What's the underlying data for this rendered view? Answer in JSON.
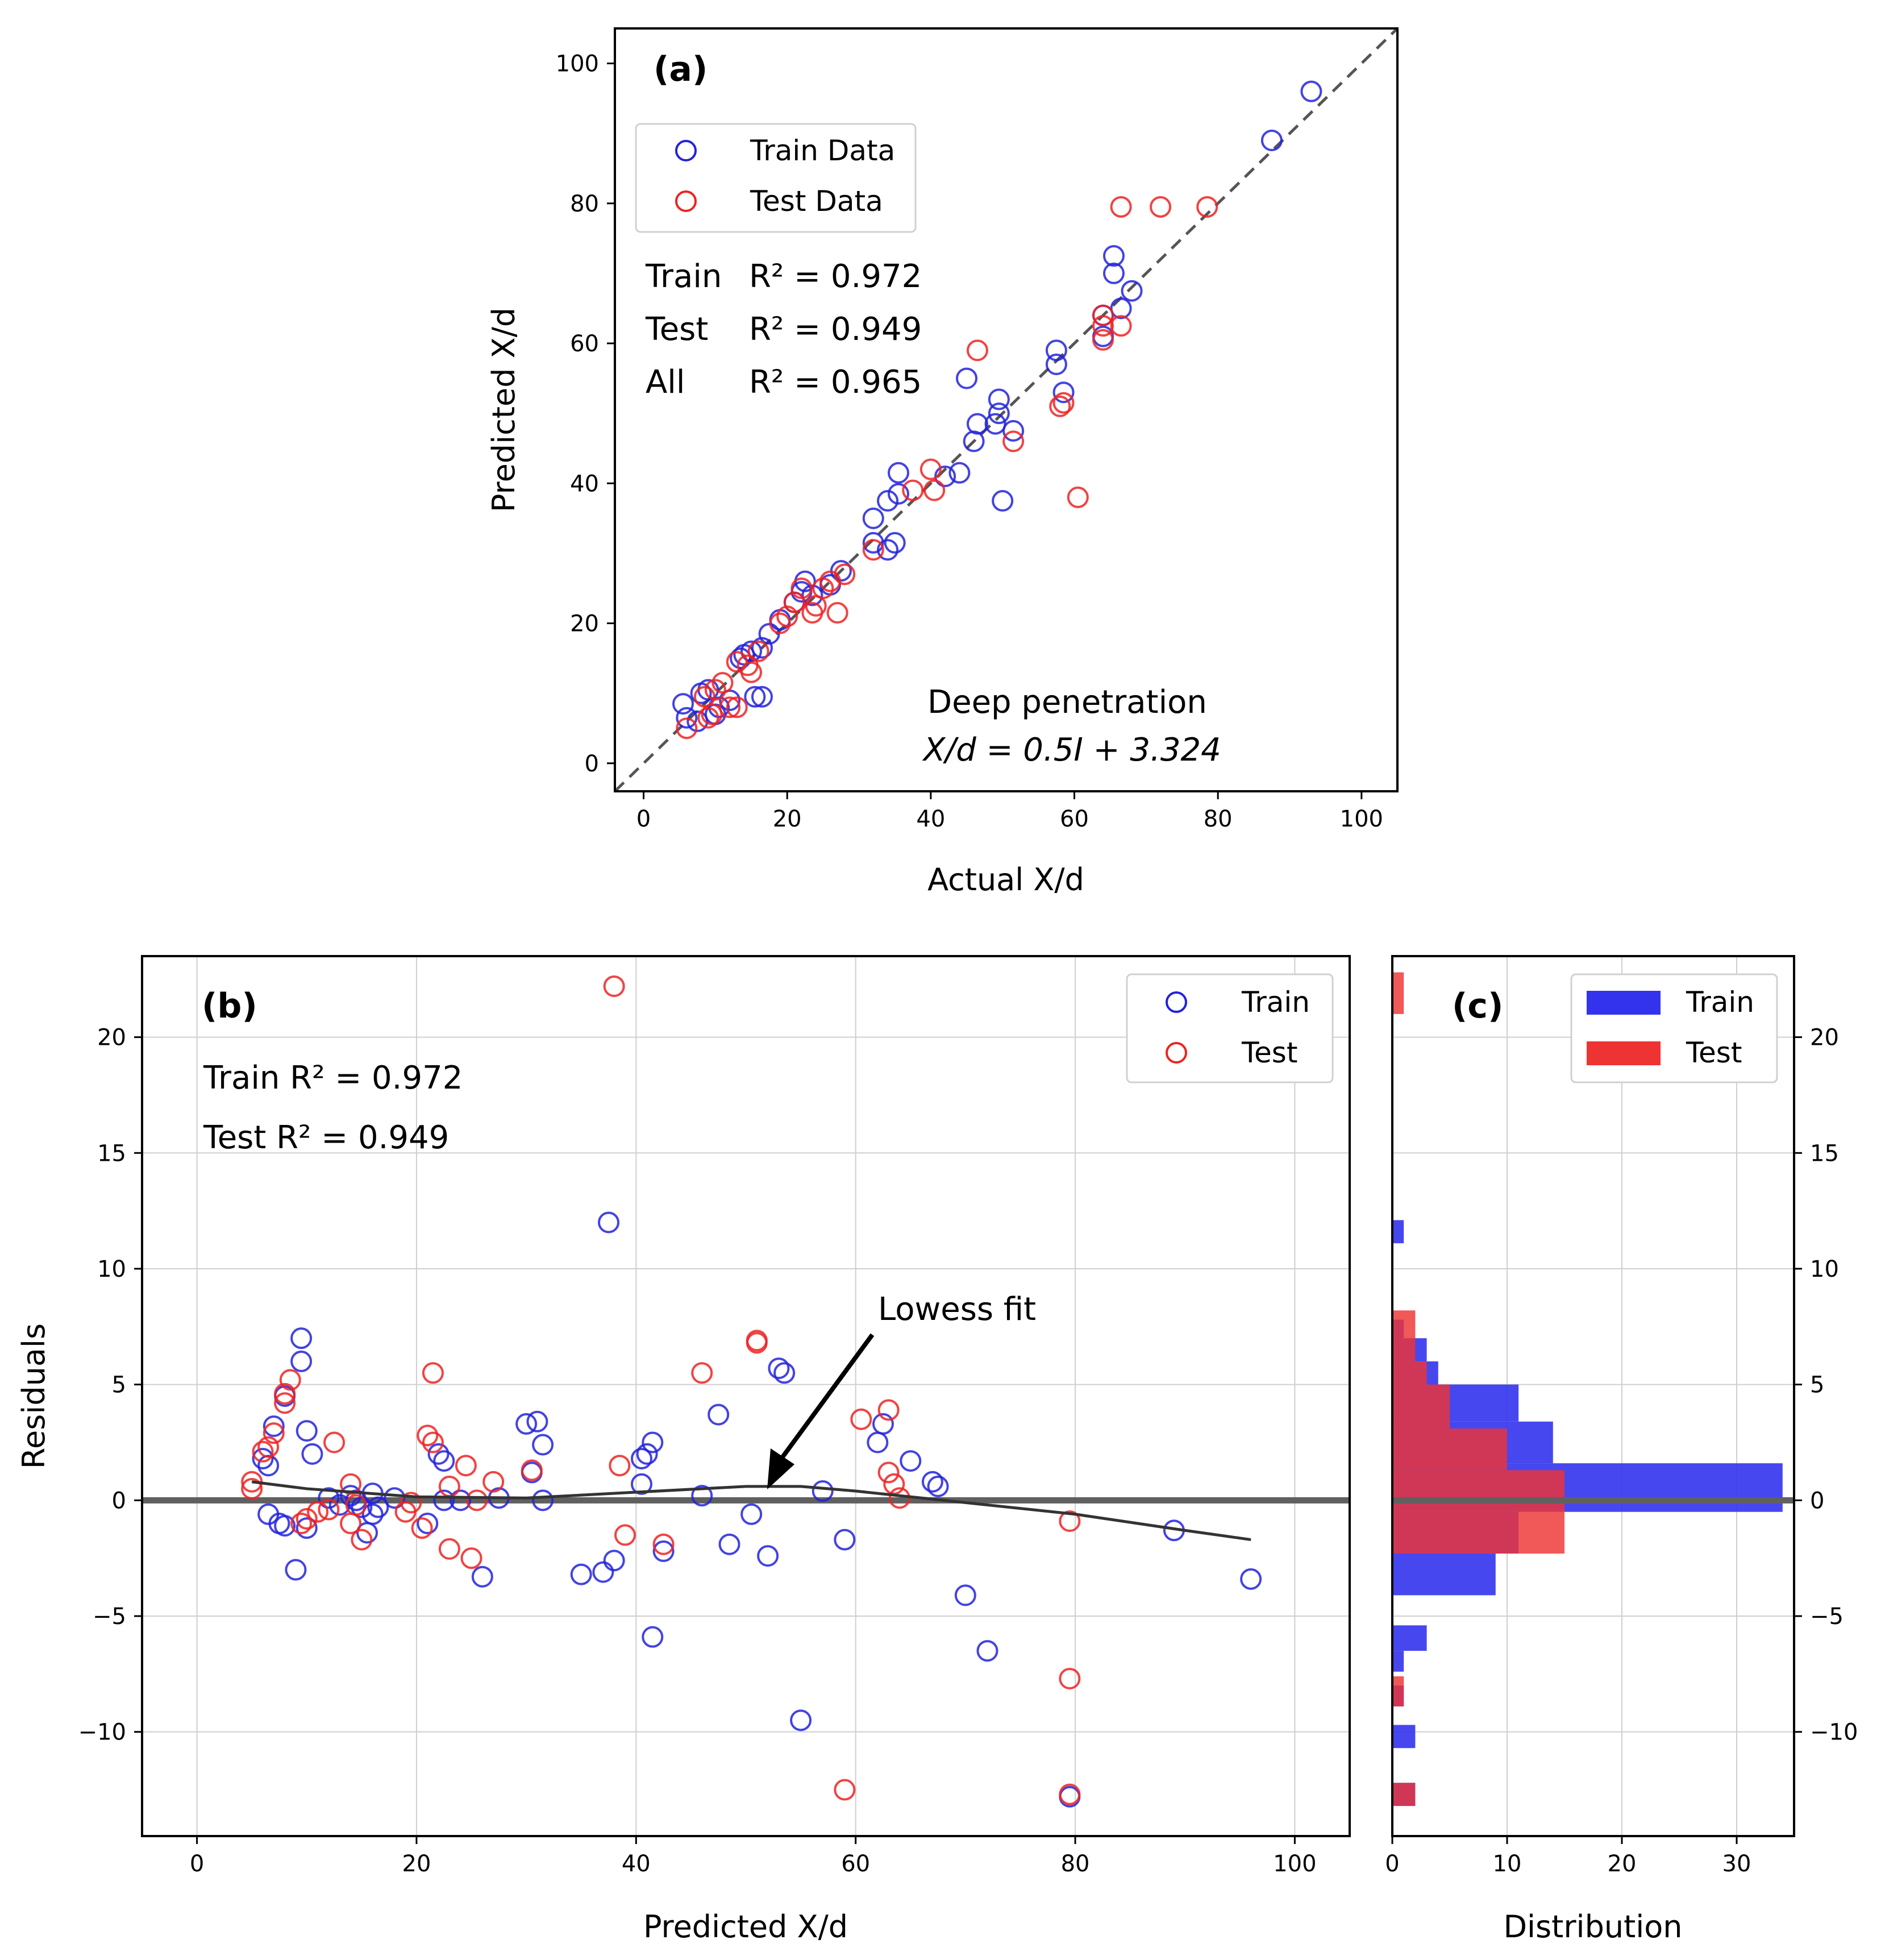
{
  "chart_data": [
    {
      "id": "a",
      "type": "scatter",
      "panel_label": "(a)",
      "xlabel": "Actual X/d",
      "ylabel": "Predicted X/d",
      "xlim": [
        -4,
        105
      ],
      "ylim": [
        -4,
        105
      ],
      "xticks": [
        0,
        20,
        40,
        60,
        80,
        100
      ],
      "yticks": [
        0,
        20,
        40,
        60,
        80,
        100
      ],
      "grid": false,
      "legend_position": "upper-left",
      "identity_line": true,
      "series": [
        {
          "name": "Train Data",
          "color": "#2222dd",
          "points": [
            [
              5.5,
              8.5
            ],
            [
              6,
              6.5
            ],
            [
              7.5,
              6
            ],
            [
              8,
              10
            ],
            [
              9,
              10.5
            ],
            [
              10,
              7
            ],
            [
              10.5,
              8
            ],
            [
              12,
              9
            ],
            [
              13.5,
              15
            ],
            [
              14,
              15.5
            ],
            [
              15,
              16
            ],
            [
              15.5,
              9.5
            ],
            [
              16.5,
              9.5
            ],
            [
              16.5,
              16.5
            ],
            [
              17.5,
              18.5
            ],
            [
              19,
              20.5
            ],
            [
              21,
              23
            ],
            [
              22,
              24.5
            ],
            [
              22.5,
              26
            ],
            [
              23.5,
              24
            ],
            [
              26,
              25.5
            ],
            [
              27.5,
              27.5
            ],
            [
              32,
              35
            ],
            [
              32,
              31.5
            ],
            [
              34,
              30.5
            ],
            [
              34,
              37.5
            ],
            [
              35,
              31.5
            ],
            [
              35.5,
              41.5
            ],
            [
              35.5,
              38.5
            ],
            [
              42,
              41
            ],
            [
              44,
              41.5
            ],
            [
              45,
              55
            ],
            [
              46,
              46
            ],
            [
              46.5,
              48.5
            ],
            [
              49,
              48.5
            ],
            [
              49.5,
              50
            ],
            [
              49.5,
              52
            ],
            [
              50,
              37.5
            ],
            [
              51.5,
              47.5
            ],
            [
              57.5,
              59
            ],
            [
              57.5,
              57
            ],
            [
              58.5,
              53
            ],
            [
              64,
              64
            ],
            [
              64,
              61
            ],
            [
              65.5,
              72.5
            ],
            [
              65.5,
              70
            ],
            [
              66.5,
              65
            ],
            [
              68,
              67.5
            ],
            [
              87.5,
              89
            ],
            [
              93,
              96
            ]
          ]
        },
        {
          "name": "Test Data",
          "color": "#ee2222",
          "points": [
            [
              6,
              5
            ],
            [
              8.5,
              9.5
            ],
            [
              9,
              6.5
            ],
            [
              9.5,
              7
            ],
            [
              10,
              10.5
            ],
            [
              11,
              11.5
            ],
            [
              12,
              8
            ],
            [
              13,
              14.5
            ],
            [
              13,
              8
            ],
            [
              14.5,
              14
            ],
            [
              15,
              13
            ],
            [
              16,
              16
            ],
            [
              19,
              20
            ],
            [
              20,
              21
            ],
            [
              21,
              23
            ],
            [
              22,
              25
            ],
            [
              23.5,
              21.5
            ],
            [
              24,
              22.5
            ],
            [
              25,
              25
            ],
            [
              26,
              26
            ],
            [
              27,
              21.5
            ],
            [
              28,
              27
            ],
            [
              32,
              30.5
            ],
            [
              37.5,
              39
            ],
            [
              40,
              42
            ],
            [
              40.5,
              39
            ],
            [
              46.5,
              59
            ],
            [
              51.5,
              46
            ],
            [
              58,
              51
            ],
            [
              58.5,
              51.5
            ],
            [
              60.5,
              38
            ],
            [
              64,
              64
            ],
            [
              64,
              62.5
            ],
            [
              64,
              60.5
            ],
            [
              66.5,
              79.5
            ],
            [
              66.5,
              62.5
            ],
            [
              72,
              79.5
            ],
            [
              78.5,
              79.5
            ]
          ]
        }
      ],
      "annotations": {
        "train_r2": {
          "label": "Train",
          "value": "R² = 0.972"
        },
        "test_r2": {
          "label": "Test",
          "value": "R² = 0.949"
        },
        "all_r2": {
          "label": "All",
          "value": "R² = 0.965"
        },
        "regime": "Deep penetration",
        "equation": "X/d = 0.5I + 3.324"
      }
    },
    {
      "id": "b",
      "type": "scatter",
      "panel_label": "(b)",
      "xlabel": "Predicted X/d",
      "ylabel": "Residuals",
      "xlim": [
        -5,
        105
      ],
      "ylim": [
        -14.5,
        23.5
      ],
      "xticks": [
        0,
        20,
        40,
        60,
        80,
        100
      ],
      "yticks": [
        -10,
        -5,
        0,
        5,
        10,
        15,
        20
      ],
      "grid": true,
      "legend_position": "upper-right",
      "zero_line": true,
      "series": [
        {
          "name": "Train",
          "color": "#2222dd",
          "points": [
            [
              6,
              1.8
            ],
            [
              6.5,
              1.5
            ],
            [
              6.5,
              -0.6
            ],
            [
              7,
              3.2
            ],
            [
              7.5,
              -1
            ],
            [
              8,
              -1.1
            ],
            [
              8,
              4.5
            ],
            [
              9,
              -3
            ],
            [
              9.5,
              7
            ],
            [
              9.5,
              6
            ],
            [
              10,
              -1.2
            ],
            [
              10,
              3
            ],
            [
              10.5,
              2
            ],
            [
              12,
              0.1
            ],
            [
              13,
              -0.2
            ],
            [
              14,
              0.2
            ],
            [
              14.5,
              0
            ],
            [
              15,
              -0.3
            ],
            [
              15.5,
              -1.4
            ],
            [
              16,
              0.3
            ],
            [
              16,
              -0.6
            ],
            [
              16.5,
              -0.3
            ],
            [
              18,
              0.1
            ],
            [
              21,
              -1
            ],
            [
              22,
              2
            ],
            [
              22.5,
              1.7
            ],
            [
              22.5,
              0
            ],
            [
              24,
              0
            ],
            [
              26,
              -3.3
            ],
            [
              27.5,
              0.1
            ],
            [
              30,
              3.3
            ],
            [
              30.5,
              1.2
            ],
            [
              31,
              3.4
            ],
            [
              31.5,
              2.4
            ],
            [
              31.5,
              0
            ],
            [
              35,
              -3.2
            ],
            [
              37,
              -3.1
            ],
            [
              37.5,
              12
            ],
            [
              38,
              -2.6
            ],
            [
              40.5,
              1.8
            ],
            [
              40.5,
              0.7
            ],
            [
              41,
              2
            ],
            [
              41.5,
              -5.9
            ],
            [
              41.5,
              2.5
            ],
            [
              42.5,
              -2.2
            ],
            [
              46,
              0.2
            ],
            [
              47.5,
              3.7
            ],
            [
              48.5,
              -1.9
            ],
            [
              50.5,
              -0.6
            ],
            [
              52,
              -2.4
            ],
            [
              53,
              5.7
            ],
            [
              53.5,
              5.5
            ],
            [
              55,
              -9.5
            ],
            [
              57,
              0.4
            ],
            [
              59,
              -1.7
            ],
            [
              62,
              2.5
            ],
            [
              62.5,
              3.3
            ],
            [
              65,
              1.7
            ],
            [
              67,
              0.8
            ],
            [
              67.5,
              0.6
            ],
            [
              70,
              -4.1
            ],
            [
              72,
              -6.5
            ],
            [
              79.5,
              -12.8
            ],
            [
              89,
              -1.3
            ],
            [
              96,
              -3.4
            ]
          ]
        },
        {
          "name": "Test",
          "color": "#ee2222",
          "points": [
            [
              5,
              0.8
            ],
            [
              5,
              0.5
            ],
            [
              6,
              2.1
            ],
            [
              6.5,
              2.3
            ],
            [
              7,
              2.9
            ],
            [
              8,
              4.2
            ],
            [
              8,
              4.6
            ],
            [
              8.5,
              5.2
            ],
            [
              9.5,
              -1
            ],
            [
              10,
              -0.8
            ],
            [
              11,
              -0.5
            ],
            [
              12,
              -0.4
            ],
            [
              12.5,
              2.5
            ],
            [
              14,
              0.7
            ],
            [
              14,
              -1
            ],
            [
              14.5,
              -0.2
            ],
            [
              15,
              -1.7
            ],
            [
              19,
              -0.5
            ],
            [
              19.5,
              -0.1
            ],
            [
              20.5,
              -1.2
            ],
            [
              21,
              2.8
            ],
            [
              21.5,
              2.5
            ],
            [
              21.5,
              5.5
            ],
            [
              23,
              -2.1
            ],
            [
              23,
              0.6
            ],
            [
              24.5,
              1.5
            ],
            [
              25,
              -2.5
            ],
            [
              25.5,
              0
            ],
            [
              27,
              0.8
            ],
            [
              30.5,
              1.3
            ],
            [
              38,
              22.2
            ],
            [
              38.5,
              1.5
            ],
            [
              39,
              -1.5
            ],
            [
              42.5,
              -1.9
            ],
            [
              46,
              5.5
            ],
            [
              51,
              6.9
            ],
            [
              51,
              6.8
            ],
            [
              59,
              -12.5
            ],
            [
              60.5,
              3.5
            ],
            [
              63,
              3.9
            ],
            [
              63,
              1.2
            ],
            [
              63.5,
              0.7
            ],
            [
              64,
              0.1
            ],
            [
              79.5,
              -12.7
            ],
            [
              79.5,
              -0.9
            ],
            [
              79.5,
              -7.7
            ]
          ]
        }
      ],
      "lowess": {
        "name": "Lowess fit",
        "x": [
          5,
          10,
          20,
          30,
          40,
          50,
          55,
          60,
          70,
          80,
          90,
          96
        ],
        "y": [
          0.8,
          0.5,
          0.15,
          0.1,
          0.35,
          0.6,
          0.6,
          0.4,
          -0.1,
          -0.6,
          -1.3,
          -1.7
        ]
      },
      "annotations": {
        "train_r2": "Train R² = 0.972",
        "test_r2": "Test  R² = 0.949",
        "lowess_label": "Lowess fit"
      }
    },
    {
      "id": "c",
      "type": "bar",
      "orientation": "horizontal",
      "panel_label": "(c)",
      "xlabel": "Distribution",
      "ylabel": "",
      "xlim": [
        0,
        35
      ],
      "ylim": [
        -14.5,
        23.5
      ],
      "xticks": [
        0,
        10,
        20,
        30
      ],
      "yticks": [
        -10,
        -5,
        0,
        5,
        10,
        15,
        20
      ],
      "grid": true,
      "legend_position": "upper-right",
      "series": [
        {
          "name": "Train",
          "color": "#3333ee",
          "bins": [
            [
              -13.2,
              -12.2,
              2
            ],
            [
              -10.7,
              -9.7,
              2
            ],
            [
              -8.9,
              -8,
              1
            ],
            [
              -7.4,
              -6.5,
              1
            ],
            [
              -6.5,
              -5.4,
              3
            ],
            [
              -4.1,
              -2.3,
              9
            ],
            [
              -2.3,
              -0.5,
              11
            ],
            [
              -0.5,
              1.6,
              34
            ],
            [
              1.6,
              3.4,
              14
            ],
            [
              3.4,
              5.0,
              11
            ],
            [
              5.0,
              6.0,
              4
            ],
            [
              6.0,
              7.0,
              3
            ],
            [
              7.0,
              7.8,
              1
            ],
            [
              11.1,
              12.1,
              1
            ]
          ]
        },
        {
          "name": "Test",
          "color": "#ee3333",
          "bins": [
            [
              -13.2,
              -12.2,
              2
            ],
            [
              -8.9,
              -7.6,
              1
            ],
            [
              -2.3,
              -0.5,
              15
            ],
            [
              -0.5,
              1.3,
              15
            ],
            [
              1.3,
              3.1,
              10
            ],
            [
              3.1,
              5.0,
              5
            ],
            [
              5.0,
              6.0,
              3
            ],
            [
              6.0,
              7.3,
              2
            ],
            [
              7.3,
              8.2,
              2
            ],
            [
              21.0,
              22.8,
              1
            ]
          ]
        }
      ]
    }
  ]
}
